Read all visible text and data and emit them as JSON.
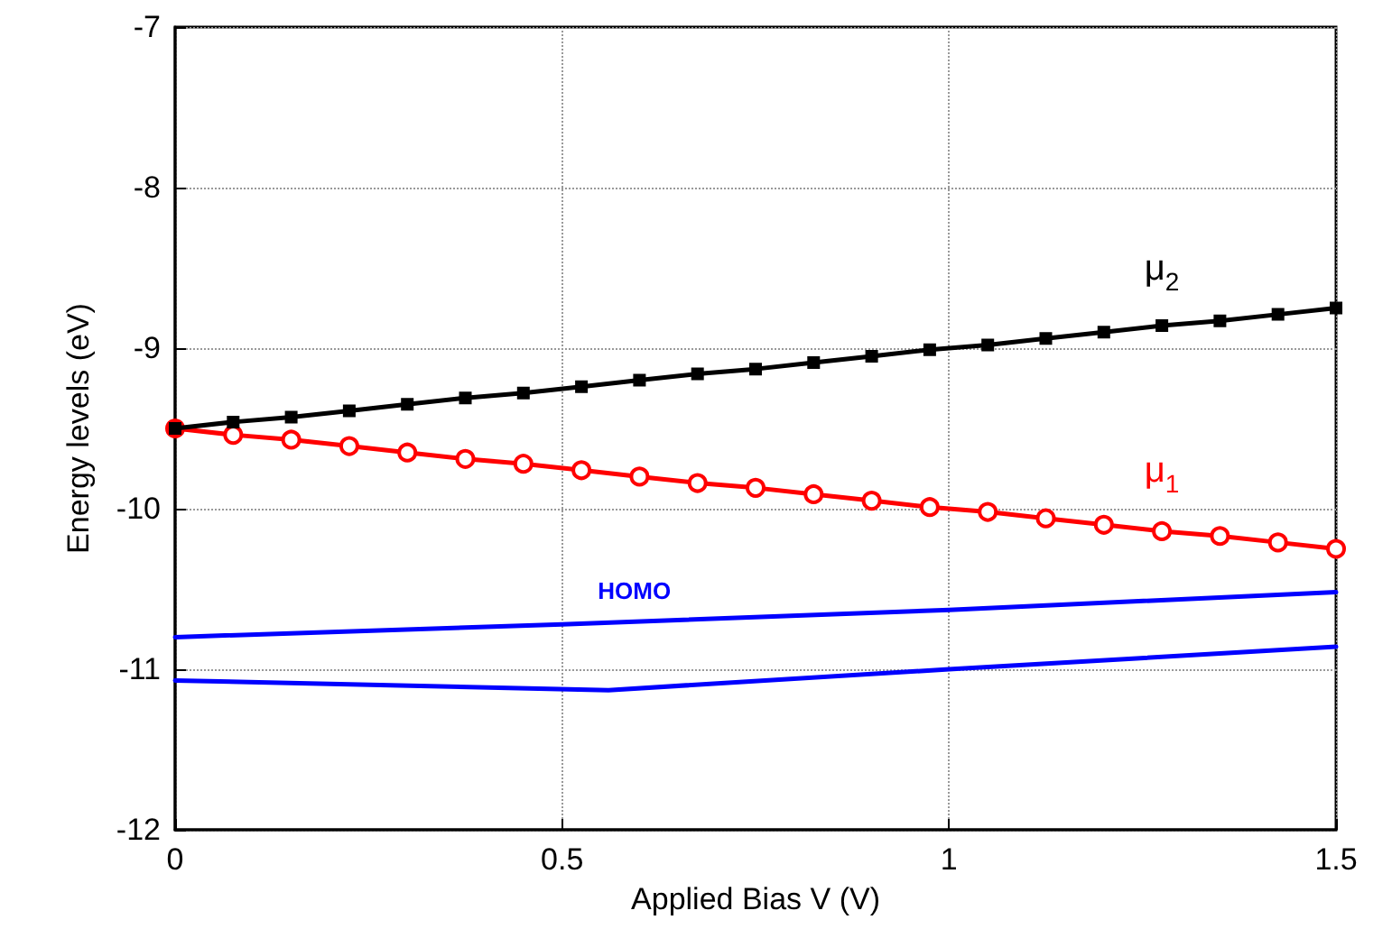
{
  "chart_data": {
    "type": "line",
    "xlabel": "Applied Bias V (V)",
    "ylabel": "Energy levels (eV)",
    "xlim": [
      0,
      1.5
    ],
    "xticks": [
      0,
      0.5,
      1,
      1.5
    ],
    "ylim": [
      -12,
      -7
    ],
    "yticks": [
      -12,
      -11,
      -10,
      -9,
      -8,
      -7
    ],
    "grid": true,
    "line_style": "solid",
    "series": [
      {
        "name": "μ$_{2}$",
        "color": "#000000",
        "marker": "square",
        "x": [
          0,
          0.075,
          0.15,
          0.225,
          0.3,
          0.375,
          0.45,
          0.525,
          0.6,
          0.675,
          0.75,
          0.825,
          0.9,
          0.975,
          1.05,
          1.125,
          1.2,
          1.275,
          1.35,
          1.425,
          1.5
        ],
        "values": [
          -9.5,
          -9.46,
          -9.43,
          -9.39,
          -9.35,
          -9.31,
          -9.28,
          -9.24,
          -9.2,
          -9.16,
          -9.13,
          -9.09,
          -9.05,
          -9.01,
          -8.98,
          -8.94,
          -8.9,
          -8.86,
          -8.83,
          -8.79,
          -8.75
        ]
      },
      {
        "name": "μ$_{1}$",
        "color": "#ff0000",
        "marker": "circle",
        "x": [
          0,
          0.075,
          0.15,
          0.225,
          0.3,
          0.375,
          0.45,
          0.525,
          0.6,
          0.675,
          0.75,
          0.825,
          0.9,
          0.975,
          1.05,
          1.125,
          1.2,
          1.275,
          1.35,
          1.425,
          1.5
        ],
        "values": [
          -9.5,
          -9.54,
          -9.57,
          -9.61,
          -9.65,
          -9.69,
          -9.72,
          -9.76,
          -9.8,
          -9.84,
          -9.87,
          -9.91,
          -9.95,
          -9.99,
          -10.02,
          -10.06,
          -10.1,
          -10.14,
          -10.17,
          -10.21,
          -10.25
        ]
      },
      {
        "name": "HOMO",
        "color": "#0000ff",
        "marker": "none",
        "x": [
          0,
          0.5,
          1,
          1.5
        ],
        "values": [
          -10.8,
          -10.72,
          -10.63,
          -10.52
        ]
      },
      {
        "color": "#0000ff",
        "marker": "none",
        "x": [
          0,
          0.56,
          1,
          1.5
        ],
        "values": [
          -11.07,
          -11.13,
          -11.0,
          -10.86
        ]
      }
    ]
  }
}
